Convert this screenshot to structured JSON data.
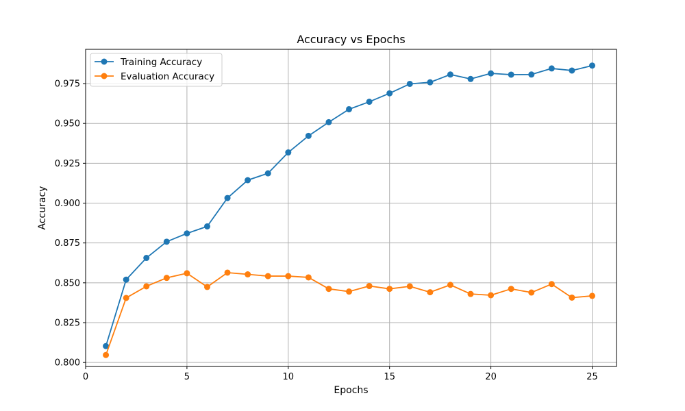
{
  "chart_data": {
    "type": "line",
    "title": "Accuracy vs Epochs",
    "xlabel": "Epochs",
    "ylabel": "Accuracy",
    "xlim": [
      0,
      26.2
    ],
    "ylim": [
      0.7975,
      0.9965
    ],
    "xticks": [
      0,
      5,
      10,
      15,
      20,
      25
    ],
    "yticks": [
      0.8,
      0.825,
      0.85,
      0.875,
      0.9,
      0.925,
      0.95,
      0.975
    ],
    "xtick_labels": [
      "0",
      "5",
      "10",
      "15",
      "20",
      "25"
    ],
    "ytick_labels": [
      "0.800",
      "0.825",
      "0.850",
      "0.875",
      "0.900",
      "0.925",
      "0.950",
      "0.975"
    ],
    "grid": true,
    "legend_position": "top-left",
    "x": [
      1,
      2,
      3,
      4,
      5,
      6,
      7,
      8,
      9,
      10,
      11,
      12,
      13,
      14,
      15,
      16,
      17,
      18,
      19,
      20,
      21,
      22,
      23,
      24,
      25
    ],
    "series": [
      {
        "name": "Training Accuracy",
        "color": "#1f77b4",
        "marker": "circle",
        "values": [
          0.8103,
          0.852,
          0.8656,
          0.8758,
          0.881,
          0.8854,
          0.9032,
          0.9144,
          0.9187,
          0.9318,
          0.9422,
          0.9508,
          0.9589,
          0.9636,
          0.9689,
          0.9748,
          0.9758,
          0.9807,
          0.9779,
          0.9814,
          0.9806,
          0.9807,
          0.9845,
          0.9832,
          0.9863
        ]
      },
      {
        "name": "Evaluation Accuracy",
        "color": "#ff7f0e",
        "marker": "circle",
        "values": [
          0.8047,
          0.8405,
          0.8478,
          0.8531,
          0.856,
          0.8474,
          0.8564,
          0.8553,
          0.8542,
          0.8542,
          0.8534,
          0.8462,
          0.8445,
          0.848,
          0.8462,
          0.8478,
          0.8441,
          0.8487,
          0.843,
          0.8422,
          0.8462,
          0.8439,
          0.8492,
          0.8407,
          0.8418
        ]
      }
    ]
  }
}
